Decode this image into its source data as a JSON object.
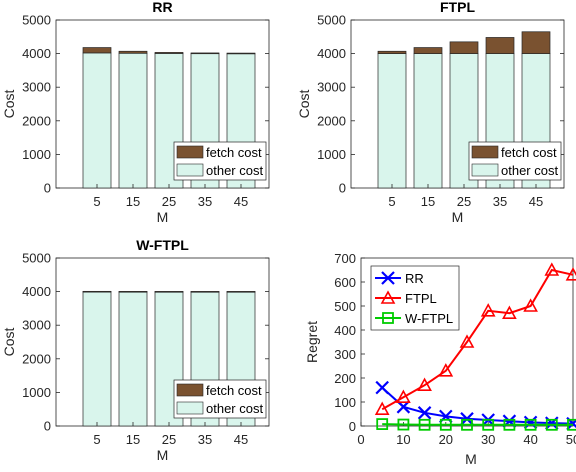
{
  "colors": {
    "fetch_cost": "#7a5230",
    "other_cost": "#d9f5ec",
    "rr": "#0000ff",
    "ftpl": "#ff0000",
    "wftpl": "#00cc00"
  },
  "chart_data": [
    {
      "type": "bar",
      "stacked": true,
      "title": "RR",
      "xlabel": "M",
      "ylabel": "Cost",
      "categories": [
        "5",
        "15",
        "25",
        "35",
        "45"
      ],
      "ylim": [
        0,
        5000
      ],
      "yticks": [
        "0",
        "1000",
        "2000",
        "3000",
        "4000",
        "5000"
      ],
      "legend": "bottom-right",
      "series": [
        {
          "name": "other cost",
          "values": [
            4020,
            4010,
            4005,
            4000,
            4000
          ]
        },
        {
          "name": "fetch cost",
          "values": [
            160,
            60,
            30,
            20,
            15
          ]
        }
      ]
    },
    {
      "type": "bar",
      "stacked": true,
      "title": "FTPL",
      "xlabel": "M",
      "ylabel": "Cost",
      "categories": [
        "5",
        "15",
        "25",
        "35",
        "45"
      ],
      "ylim": [
        0,
        5000
      ],
      "yticks": [
        "0",
        "1000",
        "2000",
        "3000",
        "4000",
        "5000"
      ],
      "legend": "bottom-right",
      "series": [
        {
          "name": "other cost",
          "values": [
            4000,
            4000,
            4000,
            4000,
            4000
          ]
        },
        {
          "name": "fetch cost",
          "values": [
            70,
            180,
            350,
            480,
            650
          ]
        }
      ]
    },
    {
      "type": "bar",
      "stacked": true,
      "title": "W-FTPL",
      "xlabel": "M",
      "ylabel": "Cost",
      "categories": [
        "5",
        "15",
        "25",
        "35",
        "45"
      ],
      "ylim": [
        0,
        5000
      ],
      "yticks": [
        "0",
        "1000",
        "2000",
        "3000",
        "4000",
        "5000"
      ],
      "legend": "bottom-right",
      "series": [
        {
          "name": "other cost",
          "values": [
            4000,
            4000,
            4000,
            4000,
            4000
          ]
        },
        {
          "name": "fetch cost",
          "values": [
            8,
            6,
            5,
            5,
            5
          ]
        }
      ]
    },
    {
      "type": "line",
      "title": "",
      "xlabel": "M",
      "ylabel": "Regret",
      "xlim": [
        0,
        50
      ],
      "ylim": [
        0,
        700
      ],
      "xticks": [
        "0",
        "10",
        "20",
        "30",
        "40",
        "50"
      ],
      "yticks": [
        "0",
        "100",
        "200",
        "300",
        "400",
        "500",
        "600",
        "700"
      ],
      "legend": "top-left",
      "x": [
        5,
        10,
        15,
        20,
        25,
        30,
        35,
        40,
        45,
        50
      ],
      "series": [
        {
          "name": "RR",
          "marker": "x",
          "values": [
            160,
            80,
            55,
            40,
            30,
            25,
            20,
            15,
            12,
            10
          ]
        },
        {
          "name": "FTPL",
          "marker": "triangle",
          "values": [
            70,
            120,
            170,
            230,
            350,
            480,
            470,
            500,
            650,
            630
          ]
        },
        {
          "name": "W-FTPL",
          "marker": "square",
          "values": [
            8,
            6,
            5,
            5,
            5,
            5,
            5,
            5,
            5,
            5
          ]
        }
      ]
    }
  ]
}
